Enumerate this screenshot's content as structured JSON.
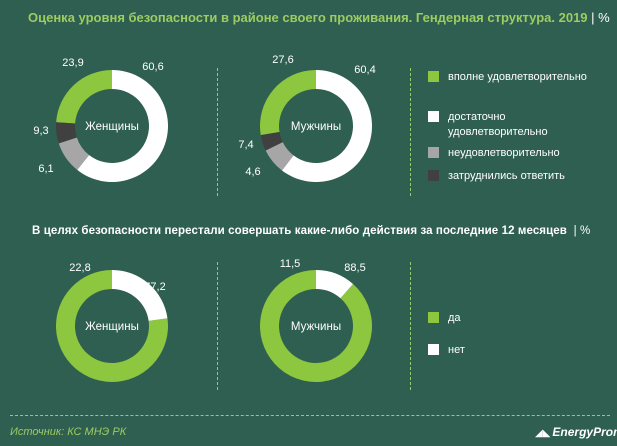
{
  "header": {
    "title": "Оценка уровня безопасности в районе своего проживания. Гендерная структура. 2019",
    "title_unit": "| %"
  },
  "section2": {
    "title": "В целях безопасности  перестали  совершать  какие-либо  действия  за последние  12 месяцев",
    "title_unit": "| %"
  },
  "colors": {
    "green": "#8dc63f",
    "white": "#ffffff",
    "gray": "#a6a6a6",
    "dark": "#404040"
  },
  "legend1": [
    {
      "label": "вполне удовлетворительно",
      "color": "#8dc63f"
    },
    {
      "label": "достаточно удовлетворительно",
      "color": "#ffffff"
    },
    {
      "label": "неудовлетворительно",
      "color": "#a6a6a6"
    },
    {
      "label": "затруднились ответить",
      "color": "#404040"
    }
  ],
  "legend2": [
    {
      "label": "да",
      "color": "#8dc63f"
    },
    {
      "label": "нет",
      "color": "#ffffff"
    }
  ],
  "chart_data": [
    {
      "type": "pie",
      "title": "Женщины",
      "categories": [
        "вполне удовлетворительно",
        "достаточно удовлетворительно",
        "неудовлетворительно",
        "затруднились ответить"
      ],
      "values": [
        23.9,
        60.6,
        9.3,
        6.1
      ],
      "labels": [
        "23,9",
        "60,6",
        "9,3",
        "6,1"
      ],
      "colors": [
        "#8dc63f",
        "#ffffff",
        "#a6a6a6",
        "#404040"
      ]
    },
    {
      "type": "pie",
      "title": "Мужчины",
      "categories": [
        "вполне удовлетворительно",
        "достаточно удовлетворительно",
        "неудовлетворительно",
        "затруднились ответить"
      ],
      "values": [
        27.6,
        60.4,
        7.4,
        4.6
      ],
      "labels": [
        "27,6",
        "60,4",
        "7,4",
        "4,6"
      ],
      "colors": [
        "#8dc63f",
        "#ffffff",
        "#a6a6a6",
        "#404040"
      ]
    },
    {
      "type": "pie",
      "title": "Женщины",
      "categories": [
        "да",
        "нет"
      ],
      "values": [
        77.2,
        22.8
      ],
      "labels": [
        "77,2",
        "22,8"
      ],
      "colors": [
        "#8dc63f",
        "#ffffff"
      ]
    },
    {
      "type": "pie",
      "title": "Мужчины",
      "categories": [
        "да",
        "нет"
      ],
      "values": [
        88.5,
        11.5
      ],
      "labels": [
        "88,5",
        "11,5"
      ],
      "colors": [
        "#8dc63f",
        "#ffffff"
      ]
    }
  ],
  "footer": {
    "source": "Источник: КС МНЭ РК",
    "logo_mark": "◢◣",
    "logo_text": "EnergyProm"
  }
}
